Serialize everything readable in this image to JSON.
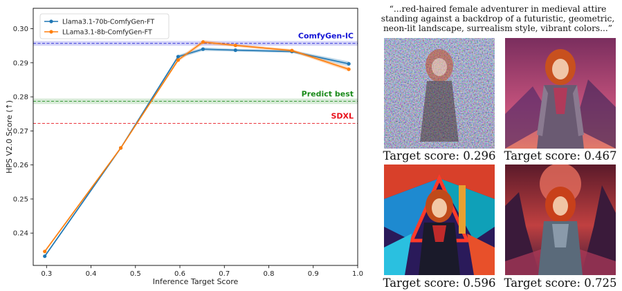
{
  "chart_data": {
    "type": "line",
    "xlabel": "Inference Target Score",
    "ylabel": "HPS V2.0 Score (↑)",
    "xlim": [
      0.27,
      1.0
    ],
    "ylim": [
      0.2305,
      0.306
    ],
    "x_ticks": [
      "0.3",
      "0.4",
      "0.5",
      "0.6",
      "0.7",
      "0.8",
      "0.9",
      "1.0"
    ],
    "y_ticks": [
      "0.24",
      "0.25",
      "0.26",
      "0.27",
      "0.28",
      "0.29",
      "0.30"
    ],
    "grid": false,
    "legend_position": "top-left",
    "series": [
      {
        "name": "Llama3.1-70b-ComfyGen-FT",
        "color": "#1f77b4",
        "x": [
          0.296,
          0.467,
          0.596,
          0.652,
          0.725,
          0.852,
          0.98
        ],
        "y": [
          0.2332,
          0.265,
          0.2918,
          0.294,
          0.2937,
          0.2933,
          0.2897
        ],
        "band": [
          0.0004,
          0.0003,
          0.0005,
          0.0005,
          0.0004,
          0.0004,
          0.0007
        ]
      },
      {
        "name": "LLama3.1-8b-ComfyGen-FT",
        "color": "#ff7f0e",
        "x": [
          0.296,
          0.467,
          0.596,
          0.652,
          0.725,
          0.852,
          0.98
        ],
        "y": [
          0.2346,
          0.265,
          0.2908,
          0.2961,
          0.2951,
          0.2936,
          0.2881
        ],
        "band": [
          0.0004,
          0.0003,
          0.0005,
          0.0006,
          0.0004,
          0.0004,
          0.0006
        ]
      }
    ],
    "reference_lines": [
      {
        "label": "ComfyGen-IC",
        "y": 0.2957,
        "band": 0.0007,
        "color": "#1515d6"
      },
      {
        "label": "Predict best",
        "y": 0.2787,
        "band": 0.0008,
        "color": "#1a8a1a"
      },
      {
        "label": "SDXL",
        "y": 0.2722,
        "band": 0,
        "color": "#e8101a"
      }
    ]
  },
  "prompt": {
    "lines": [
      "“...red-haired female adventurer in medieval attire",
      "standing against a backdrop of a futuristic, geometric,",
      "neon-lit landscape, surrealism style, vibrant colors...”"
    ]
  },
  "samples": [
    {
      "caption": "Target score: 0.296",
      "score": 0.296
    },
    {
      "caption": "Target score: 0.467",
      "score": 0.467
    },
    {
      "caption": "Target score: 0.596",
      "score": 0.596
    },
    {
      "caption": "Target score: 0.725",
      "score": 0.725
    }
  ]
}
